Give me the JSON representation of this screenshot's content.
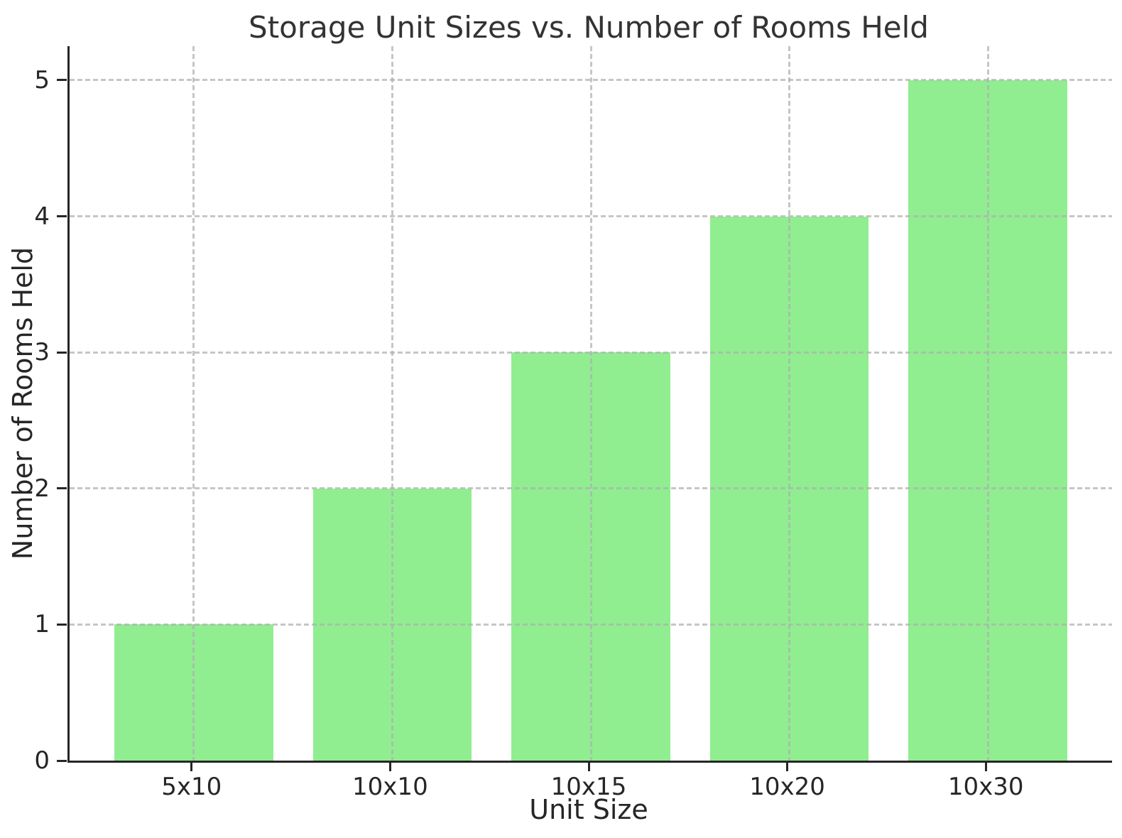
{
  "chart_data": {
    "type": "bar",
    "title": "Storage Unit Sizes vs. Number of Rooms Held",
    "xlabel": "Unit Size",
    "ylabel": "Number of Rooms Held",
    "categories": [
      "5x10",
      "10x10",
      "10x15",
      "10x20",
      "10x30"
    ],
    "values": [
      1,
      2,
      3,
      4,
      5
    ],
    "yticks": [
      "0",
      "1",
      "2",
      "3",
      "4",
      "5"
    ],
    "ylim": [
      0,
      5.25
    ],
    "bar_color": "#90EE90",
    "bar_width_units": 0.8,
    "grid": true,
    "grid_linestyle": "dashed",
    "grid_color": "#b0b0b0",
    "legend": null,
    "spine_color": "#262626",
    "title_color": "#333333"
  }
}
